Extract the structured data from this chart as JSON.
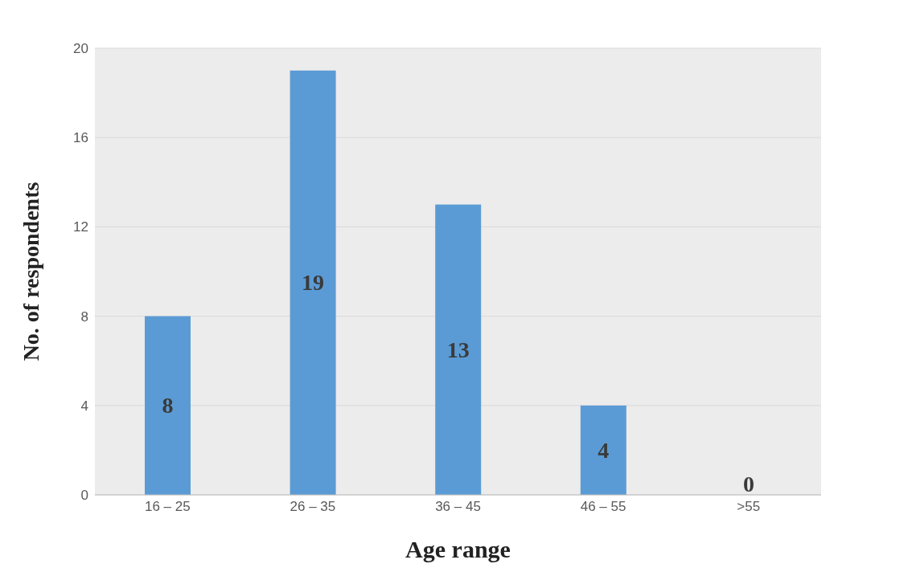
{
  "chart_data": {
    "type": "bar",
    "xlabel": "Age range",
    "ylabel": "No. of respondents",
    "categories": [
      "16 – 25",
      "26 – 35",
      "36 – 45",
      "46 – 55",
      ">55"
    ],
    "values": [
      8,
      19,
      13,
      4,
      0
    ],
    "color": "#5b9bd5",
    "ylim": [
      0,
      20
    ],
    "yticks": [
      0,
      4,
      8,
      12,
      16,
      20
    ],
    "grid": "y",
    "data_labels": true
  }
}
